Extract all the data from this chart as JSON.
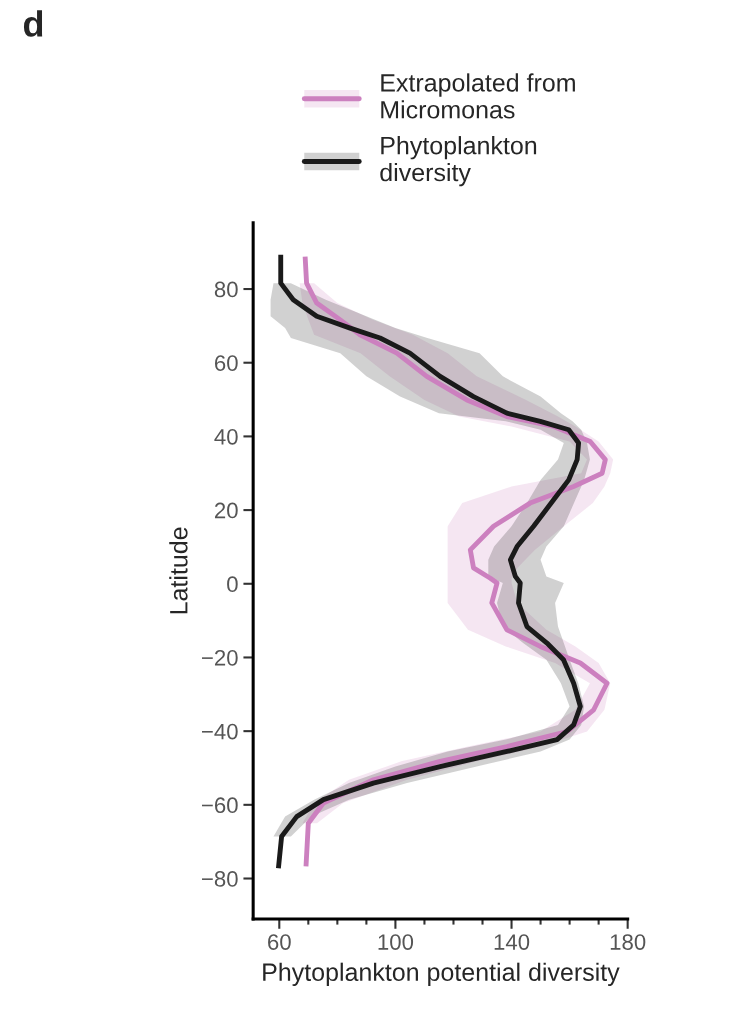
{
  "chart_data": {
    "type": "line",
    "title": "d",
    "orientation": "horizontal",
    "xlabel": "Phytoplankton potential diversity",
    "ylabel": "Latitude",
    "xlim": [
      51,
      180
    ],
    "xticks": [
      60,
      100,
      140,
      180
    ],
    "ylim": [
      -91,
      98
    ],
    "yticks": [
      {
        "value": -80,
        "label": "−80"
      },
      {
        "value": -60,
        "label": "−60"
      },
      {
        "value": -40,
        "label": "−40"
      },
      {
        "value": -20,
        "label": "−20"
      },
      0,
      20,
      40,
      60,
      80
    ],
    "legend": "top",
    "grid": false,
    "series": [
      {
        "name": "Extrapolated from\nMicromonas",
        "color": "#cc80bf",
        "x": [
          88.8,
          81.6,
          76.2,
          71.7,
          67.6,
          62.6,
          56.3,
          49.9,
          45.4,
          42.7,
          38.6,
          33.7,
          30,
          26.4,
          21.9,
          15.6,
          9.2,
          4.3,
          1.5,
          0.2,
          -5.2,
          -12.5,
          -17,
          -21.5,
          -27,
          -34.2,
          -40.1,
          -44.2,
          -48.2,
          -53.2,
          -59.5,
          -65,
          -76.7
        ],
        "values": [
          68.9,
          69.4,
          72.9,
          80.9,
          87.8,
          100.5,
          110.8,
          124.6,
          138.4,
          154.5,
          167.1,
          172.3,
          171.2,
          161.4,
          146.4,
          133.8,
          125.8,
          126.9,
          132.7,
          135,
          133.2,
          138.4,
          149.9,
          163.7,
          172.9,
          168.3,
          159.1,
          138.4,
          115.4,
          92.4,
          75.2,
          70,
          69.2
        ],
        "lower": [
          null,
          67,
          68,
          70,
          72,
          88,
          98,
          110,
          122,
          140,
          160,
          166,
          164,
          140,
          123,
          118,
          118,
          118,
          118,
          118,
          118,
          125,
          138,
          155,
          167,
          162,
          150,
          125,
          102,
          84,
          72,
          68,
          null
        ],
        "upper": [
          null,
          72,
          80,
          92,
          106,
          118,
          128,
          145,
          156,
          162,
          170,
          175,
          174,
          172,
          168,
          158,
          148,
          142,
          140,
          140,
          142,
          152,
          162,
          170,
          174,
          172,
          166,
          150,
          128,
          104,
          82,
          73,
          null
        ]
      },
      {
        "name": "Phytoplankton\ndiversity",
        "color": "#1a1a1a",
        "x": [
          89.3,
          81.6,
          77.1,
          72.6,
          69.4,
          66.7,
          62.6,
          56.3,
          50.8,
          46.3,
          44.1,
          41.8,
          38.2,
          33.7,
          28.2,
          22.8,
          15.6,
          10.1,
          6.5,
          2.0,
          0.2,
          -5.2,
          -11.6,
          -16.1,
          -20.6,
          -27,
          -33.3,
          -38.3,
          -42.3,
          -45.5,
          -49.6,
          -54.1,
          -58.6,
          -63.2,
          -68.6,
          -77.2
        ],
        "values": [
          60.5,
          60.5,
          64.8,
          72.9,
          84.4,
          94.7,
          105,
          115.4,
          126.9,
          138.4,
          149.9,
          159.7,
          163.1,
          162.6,
          159.7,
          154.5,
          147.6,
          141.9,
          139.6,
          141.3,
          143,
          142.4,
          145.3,
          152.2,
          157.9,
          161.4,
          163.7,
          161.4,
          155.7,
          138.4,
          115.4,
          92.4,
          75.2,
          66,
          60.8,
          59.7
        ],
        "lower": [
          null,
          58,
          57,
          57,
          62,
          64,
          81,
          90,
          101.6,
          115,
          138,
          150,
          158,
          156,
          150,
          146,
          140,
          134,
          132,
          132,
          137,
          135,
          137,
          144,
          152,
          157,
          160,
          156,
          138,
          118,
          100,
          84,
          72,
          62,
          58,
          null
        ],
        "upper": [
          null,
          64,
          76,
          90,
          100,
          111,
          129,
          137,
          150,
          157,
          161,
          164,
          166,
          167,
          165,
          162,
          158,
          152,
          150,
          152,
          158,
          155,
          156,
          158,
          160,
          163,
          165,
          164,
          160,
          150,
          128,
          104,
          84,
          71,
          64,
          null
        ]
      }
    ]
  }
}
